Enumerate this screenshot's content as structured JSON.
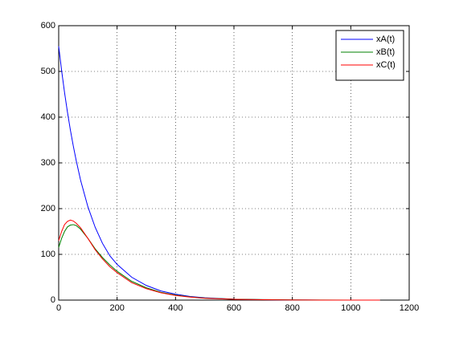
{
  "chart_data": {
    "type": "line",
    "x": [
      0,
      10,
      20,
      30,
      40,
      50,
      60,
      75,
      100,
      125,
      150,
      175,
      200,
      250,
      300,
      350,
      400,
      450,
      500,
      600,
      700,
      800,
      900,
      1000,
      1100
    ],
    "series": [
      {
        "name": "xA(t)",
        "color": "#0000ff",
        "values": [
          555,
          502,
          454,
          411,
          372,
          337,
          305,
          262,
          204,
          159,
          124,
          97,
          78,
          50,
          32,
          20,
          13,
          8,
          5,
          2,
          0.8,
          0.3,
          0.1,
          0,
          0
        ]
      },
      {
        "name": "xB(t)",
        "color": "#008000",
        "values": [
          115,
          135,
          150,
          160,
          164,
          165,
          163,
          155,
          135,
          112,
          93,
          77,
          63,
          41,
          27,
          17,
          11,
          7,
          4.5,
          2,
          1,
          0.4,
          0.2,
          0.1,
          0
        ]
      },
      {
        "name": "xC(t)",
        "color": "#ff0000",
        "values": [
          130,
          150,
          165,
          172,
          175,
          173,
          168,
          158,
          135,
          110,
          90,
          73,
          60,
          38,
          25,
          16,
          10,
          6.5,
          4,
          1.8,
          0.8,
          0.3,
          0.1,
          0.1,
          0
        ]
      }
    ],
    "xlim": [
      0,
      1200
    ],
    "ylim": [
      0,
      600
    ],
    "xticks": [
      0,
      200,
      400,
      600,
      800,
      1000,
      1200
    ],
    "yticks": [
      0,
      100,
      200,
      300,
      400,
      500,
      600
    ],
    "grid": true,
    "legend": "upper-right"
  }
}
